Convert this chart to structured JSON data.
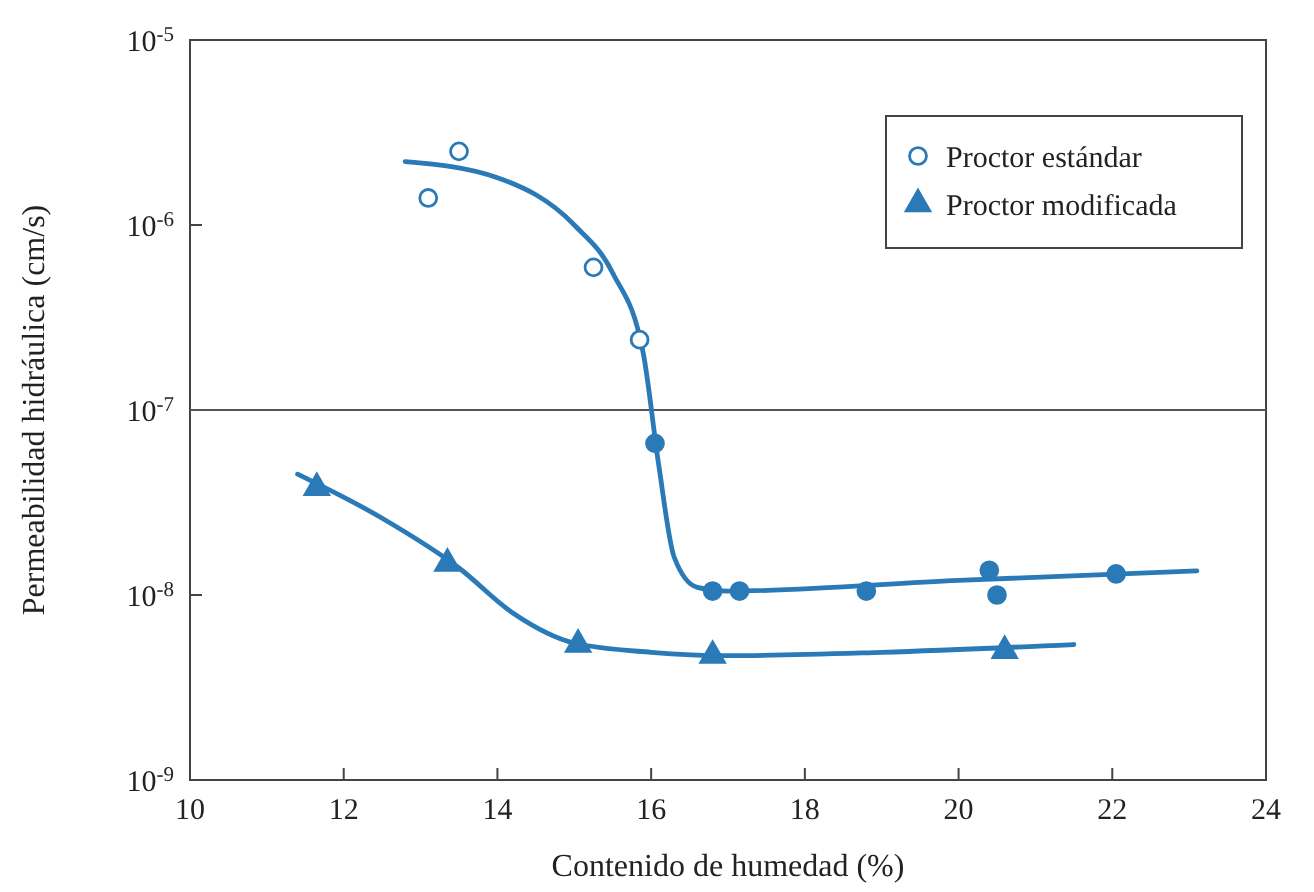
{
  "chart_data": {
    "type": "scatter",
    "xlabel": "Contenido de humedad (%)",
    "ylabel": "Permeabilidad hidráulica (cm/s)",
    "log": "y",
    "xlim": [
      10,
      24
    ],
    "xticks": [
      10,
      12,
      14,
      16,
      18,
      20,
      22,
      24
    ],
    "ylim": [
      1e-09,
      1e-05
    ],
    "yticks": [
      {
        "value": 1e-09,
        "label": "10$^{-9}$"
      },
      {
        "value": 1e-08,
        "label": "10$^{-8}$"
      },
      {
        "value": 1e-07,
        "label": "10$^{-7}$"
      },
      {
        "value": 1e-06,
        "label": "10$^{-6}$"
      },
      {
        "value": 1e-05,
        "label": "10$^{-5}$"
      }
    ],
    "grid": false,
    "legend": "top right",
    "ref_lines": [
      {
        "axis": "y",
        "value": 1e-07,
        "color": "#555555"
      }
    ],
    "series": [
      {
        "type": "line",
        "x": [
          12.8,
          14.0,
          15.0,
          15.5,
          15.9,
          16.1,
          16.3,
          16.6,
          17.0,
          20.0,
          23.1
        ],
        "values": [
          2.2e-06,
          1.8e-06,
          1e-06,
          5.5e-07,
          2e-07,
          5e-08,
          1.6e-08,
          1.1e-08,
          1.05e-08,
          1.2e-08,
          1.35e-08
        ],
        "color": "#2a7ab8",
        "marker": "none",
        "line_style": "solid"
      },
      {
        "type": "line",
        "x": [
          11.4,
          12.5,
          13.5,
          14.2,
          15.0,
          16.0,
          17.0,
          19.0,
          21.5
        ],
        "values": [
          4.5e-08,
          2.6e-08,
          1.4e-08,
          8e-09,
          5.5e-09,
          4.9e-09,
          4.7e-09,
          4.9e-09,
          5.4e-09
        ],
        "color": "#2a7ab8",
        "marker": "none",
        "line_style": "solid"
      },
      {
        "name": "Proctor estándar",
        "x": [
          13.1,
          13.5,
          15.25,
          15.85
        ],
        "values": [
          1.4e-06,
          2.5e-06,
          5.9e-07,
          2.4e-07
        ],
        "color": "#2a7ab8",
        "marker": "circle"
      },
      {
        "x": [
          16.05,
          16.8,
          17.15,
          18.8,
          20.4,
          20.5,
          22.05
        ],
        "values": [
          6.6e-08,
          1.05e-08,
          1.05e-08,
          1.05e-08,
          1.36e-08,
          1e-08,
          1.3e-08
        ],
        "color": "#2a7ab8",
        "marker": "circle"
      },
      {
        "name": "Proctor modificada",
        "x": [
          11.65,
          13.35,
          15.05,
          16.8,
          20.6
        ],
        "values": [
          3.8e-08,
          1.48e-08,
          5.4e-09,
          4.7e-09,
          5e-09
        ],
        "color": "#2a7ab8",
        "marker": "triangle"
      }
    ]
  }
}
